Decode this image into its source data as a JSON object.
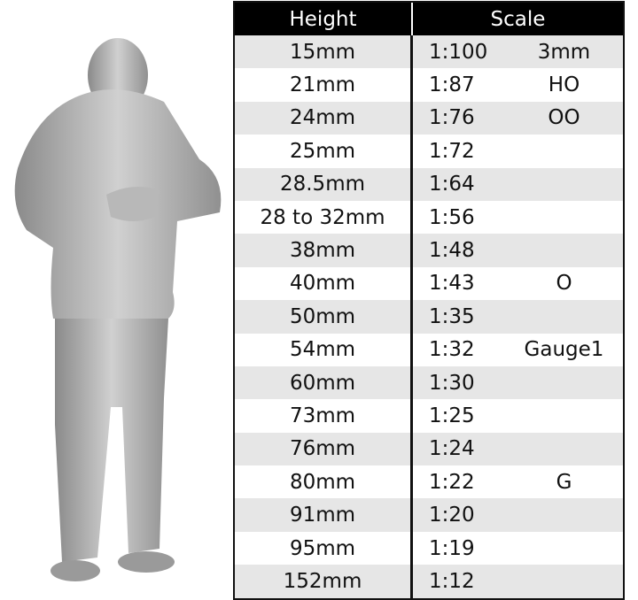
{
  "table": {
    "headers": {
      "height": "Height",
      "scale": "Scale"
    },
    "rows": [
      {
        "height": "15mm",
        "ratio": "1:100",
        "gauge": "3mm"
      },
      {
        "height": "21mm",
        "ratio": "1:87",
        "gauge": "HO"
      },
      {
        "height": "24mm",
        "ratio": "1:76",
        "gauge": "OO"
      },
      {
        "height": "25mm",
        "ratio": "1:72",
        "gauge": ""
      },
      {
        "height": "28.5mm",
        "ratio": "1:64",
        "gauge": ""
      },
      {
        "height": "28 to 32mm",
        "ratio": "1:56",
        "gauge": ""
      },
      {
        "height": "38mm",
        "ratio": "1:48",
        "gauge": ""
      },
      {
        "height": "40mm",
        "ratio": "1:43",
        "gauge": "O"
      },
      {
        "height": "50mm",
        "ratio": "1:35",
        "gauge": ""
      },
      {
        "height": "54mm",
        "ratio": "1:32",
        "gauge": "Gauge1"
      },
      {
        "height": "60mm",
        "ratio": "1:30",
        "gauge": ""
      },
      {
        "height": "73mm",
        "ratio": "1:25",
        "gauge": ""
      },
      {
        "height": "76mm",
        "ratio": "1:24",
        "gauge": ""
      },
      {
        "height": "80mm",
        "ratio": "1:22",
        "gauge": "G"
      },
      {
        "height": "91mm",
        "ratio": "1:20",
        "gauge": ""
      },
      {
        "height": "95mm",
        "ratio": "1:19",
        "gauge": ""
      },
      {
        "height": "152mm",
        "ratio": "1:12",
        "gauge": ""
      }
    ]
  },
  "colors": {
    "header_bg": "#000000",
    "row_alt": "#e6e6e6",
    "figure": "#a8a8a8"
  }
}
